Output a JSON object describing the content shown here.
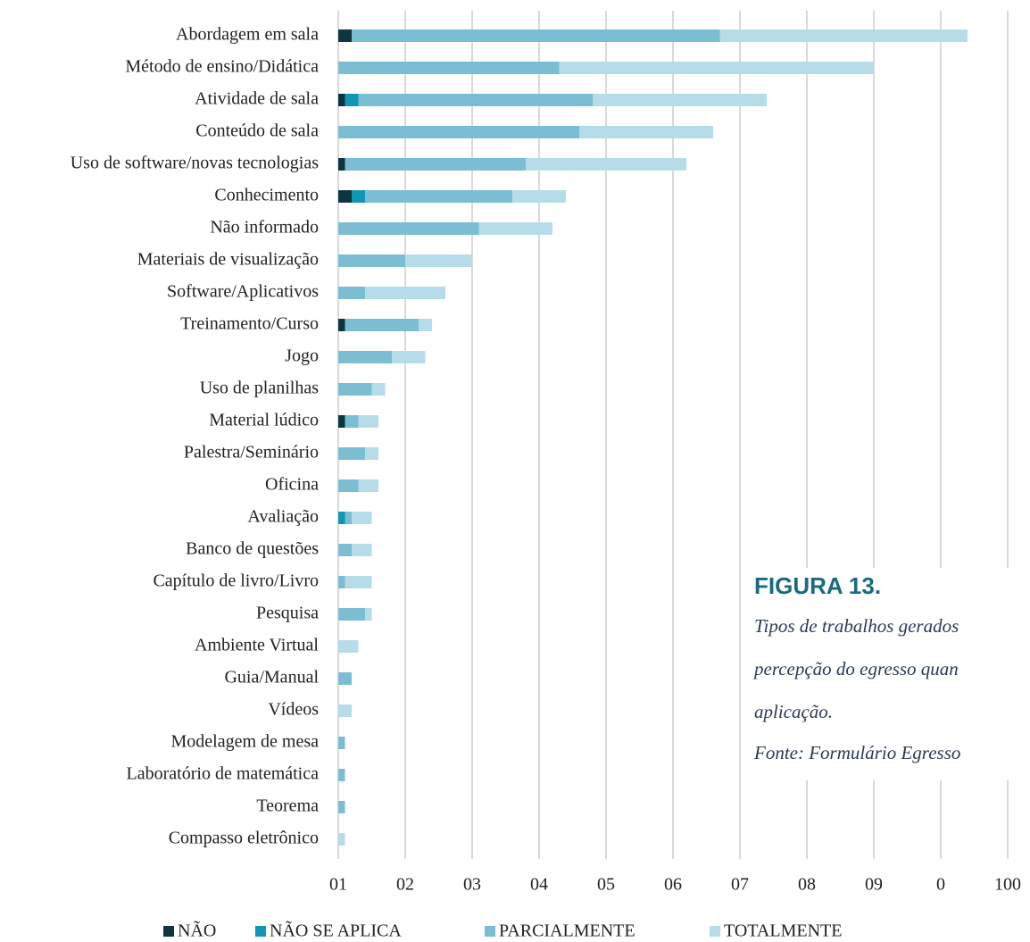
{
  "chart_data": {
    "type": "stacked_barh",
    "categories": [
      "Abordagem em sala",
      "Método de ensino/Didática",
      "Atividade de sala",
      "Conteúdo de sala",
      "Uso de software/novas tecnologias",
      "Conhecimento",
      "Não informado",
      "Materiais de visualização",
      "Software/Aplicativos",
      "Treinamento/Curso",
      "Jogo",
      "Uso de planilhas",
      "Material lúdico",
      "Palestra/Seminário",
      "Oficina",
      "Avaliação",
      "Banco de questões",
      "Capítulo de livro/Livro",
      "Pesquisa",
      "Ambiente Virtual",
      "Guia/Manual",
      "Vídeos",
      "Modelagem de mesa",
      "Laboratório de matemática",
      "Teorema",
      "Compasso eletrônico"
    ],
    "series": [
      {
        "name": "NÃO",
        "color": "#0e3640",
        "values": [
          2,
          0,
          1,
          0,
          1,
          2,
          0,
          0,
          0,
          1,
          0,
          0,
          1,
          0,
          0,
          0,
          0,
          0,
          0,
          0,
          0,
          0,
          0,
          0,
          0,
          0
        ]
      },
      {
        "name": "NÃO SE APLICA",
        "color": "#1196b4",
        "values": [
          0,
          0,
          2,
          0,
          0,
          2,
          0,
          0,
          0,
          0,
          0,
          0,
          0,
          0,
          0,
          1,
          0,
          0,
          0,
          0,
          0,
          0,
          0,
          0,
          0,
          0
        ]
      },
      {
        "name": "PARCIALMENTE",
        "color": "#7bbdd2",
        "values": [
          55,
          33,
          35,
          36,
          27,
          22,
          21,
          10,
          4,
          11,
          8,
          5,
          2,
          4,
          3,
          1,
          2,
          1,
          4,
          0,
          2,
          0,
          1,
          1,
          1,
          0
        ]
      },
      {
        "name": "TOTALMENTE",
        "color": "#b6dce9",
        "values": [
          37,
          47,
          26,
          20,
          24,
          8,
          11,
          10,
          12,
          2,
          5,
          2,
          3,
          2,
          3,
          3,
          3,
          4,
          1,
          3,
          0,
          2,
          0,
          0,
          0,
          1
        ]
      }
    ],
    "xlim": [
      0,
      100
    ],
    "xticks": [
      {
        "value": 0,
        "label": "01"
      },
      {
        "value": 10,
        "label": "02"
      },
      {
        "value": 20,
        "label": "03"
      },
      {
        "value": 30,
        "label": "04"
      },
      {
        "value": 40,
        "label": "05"
      },
      {
        "value": 50,
        "label": "06"
      },
      {
        "value": 60,
        "label": "07"
      },
      {
        "value": 70,
        "label": "08"
      },
      {
        "value": 80,
        "label": "09"
      },
      {
        "value": 90,
        "label": "0"
      },
      100
    ],
    "grid": true,
    "legend": "bottom",
    "annotations": [
      "FIGURA 13.",
      "Tipos de trabalhos gerados",
      "percepção do egresso quan",
      "aplicação.",
      "Fonte: Formulário Egresso"
    ]
  }
}
